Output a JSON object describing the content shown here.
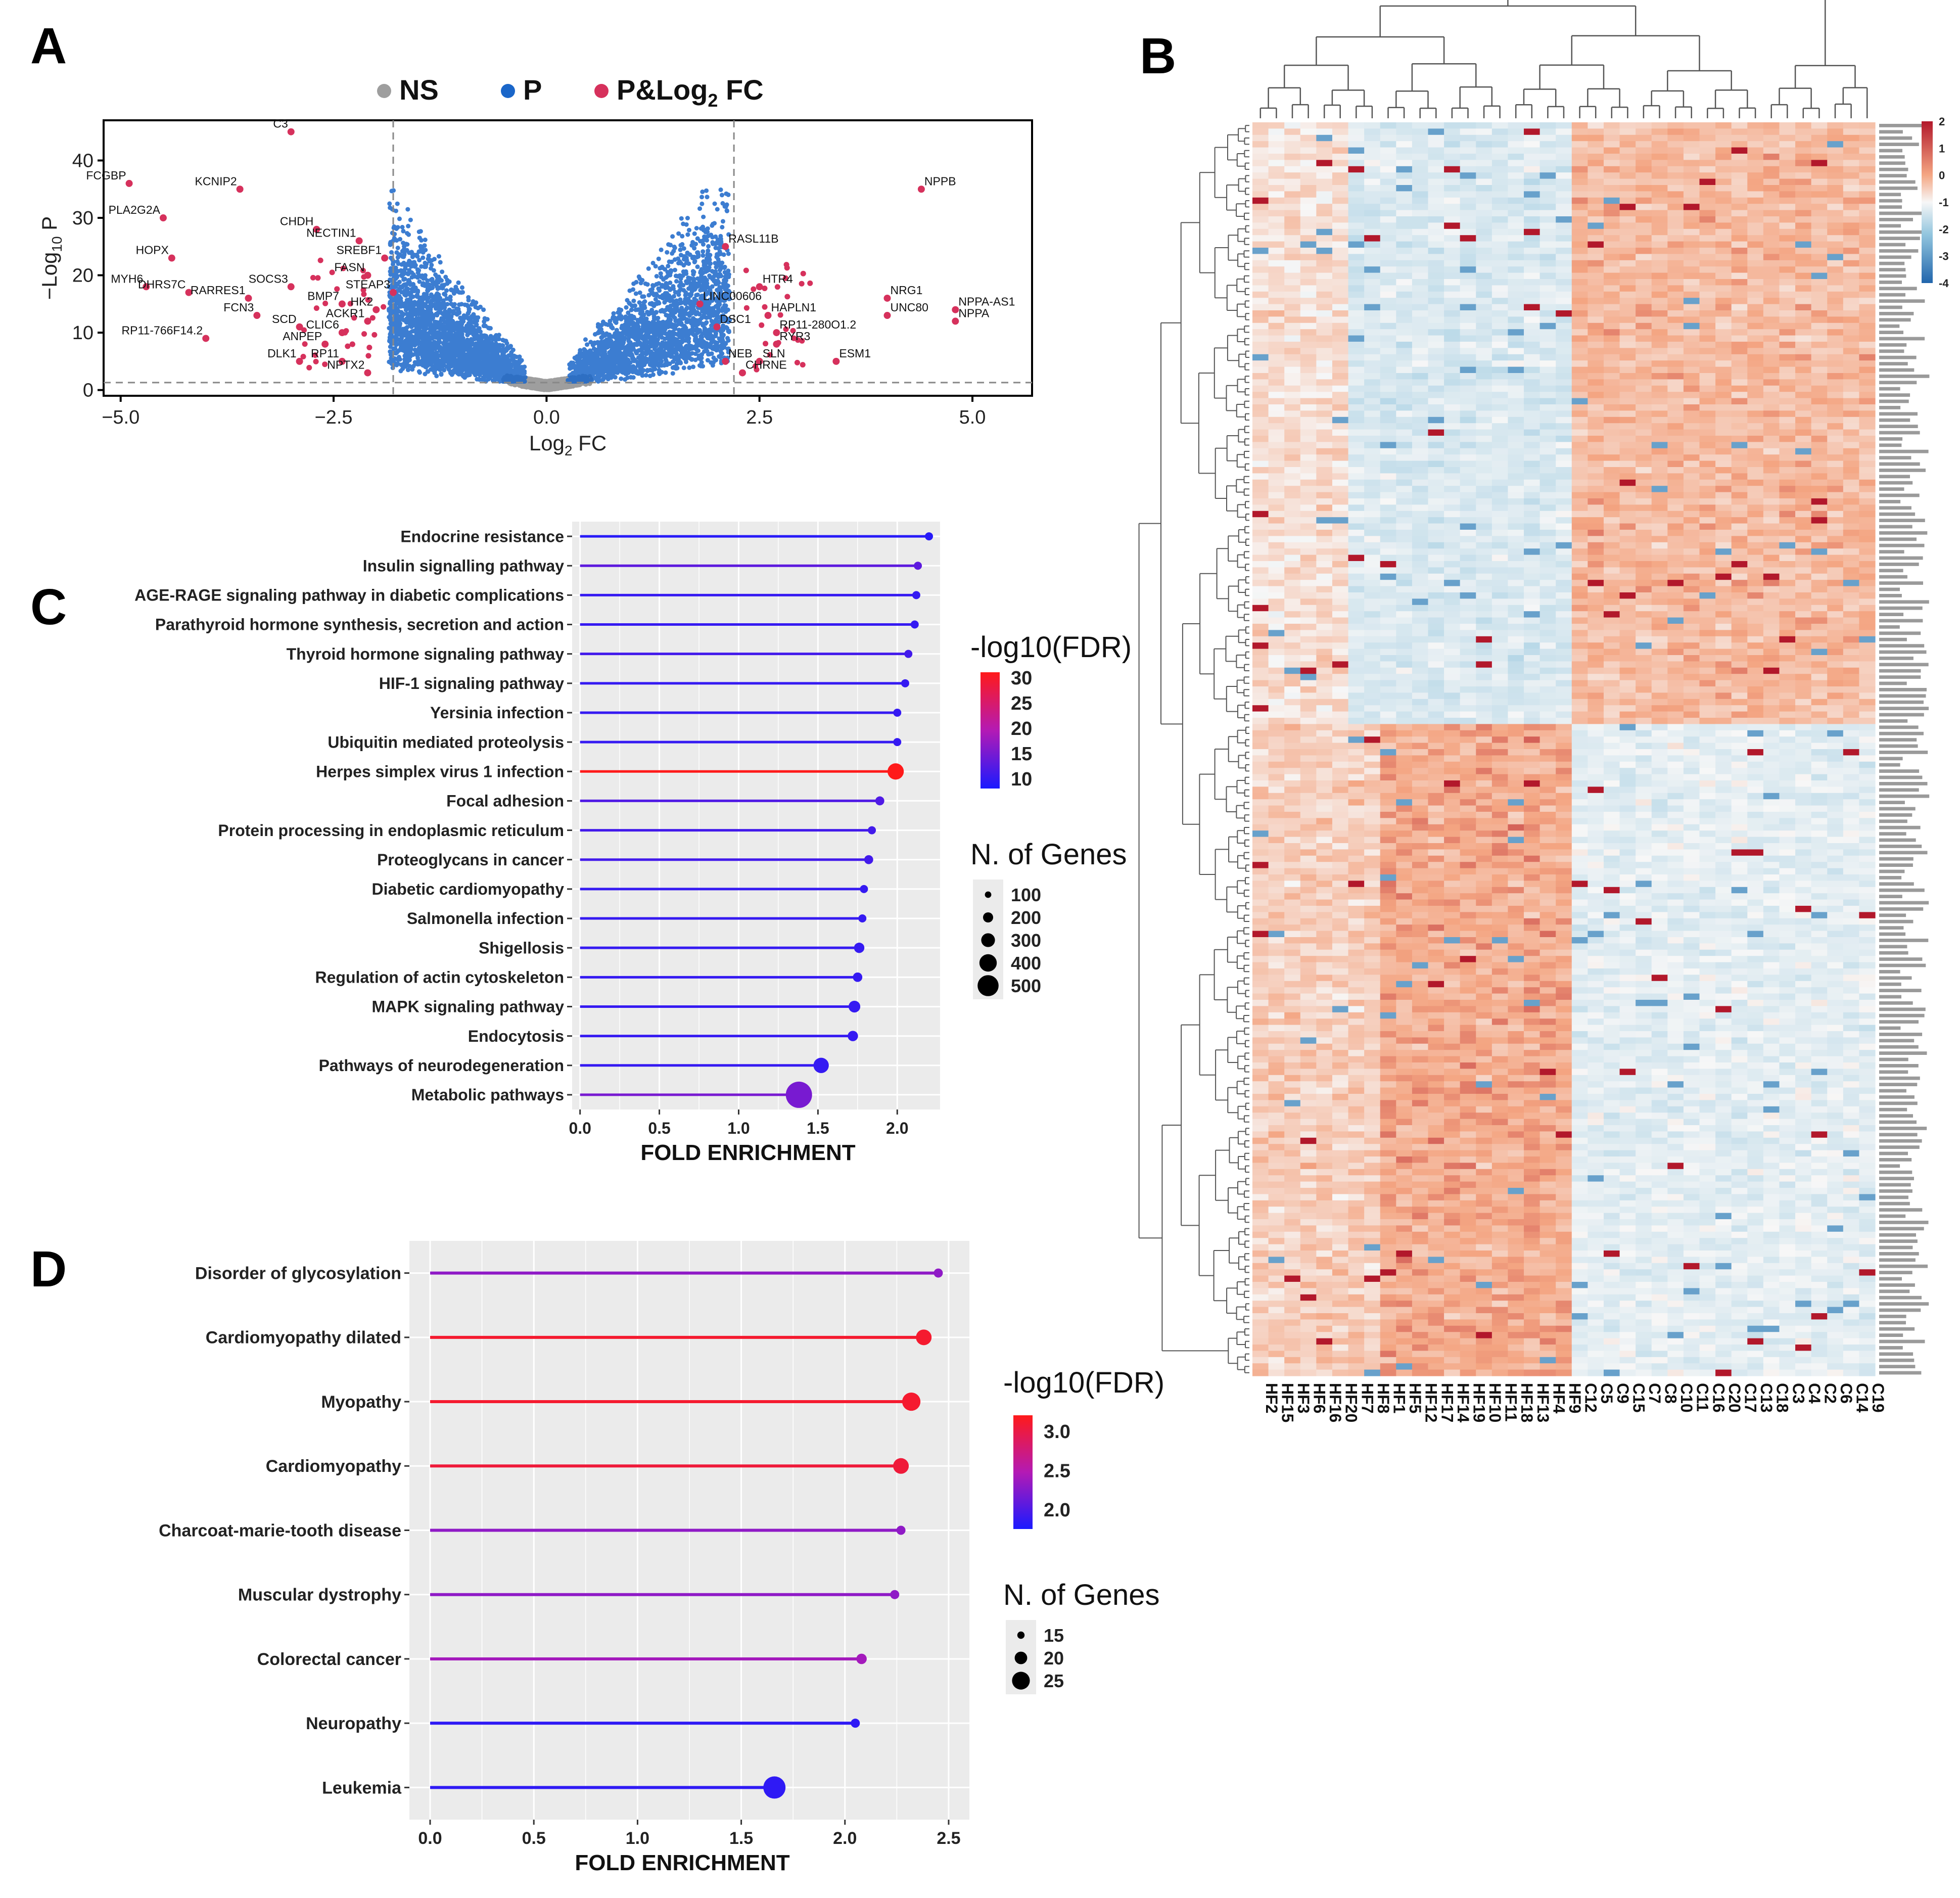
{
  "panel_labels": {
    "A": "A",
    "B": "B",
    "C": "C",
    "D": "D"
  },
  "colors": {
    "ns": "#9e9e9e",
    "p": "#1a66c9",
    "sig": "#d6315c",
    "heat_high": "#b2182b",
    "heat_low": "#2166ac",
    "fdr_high": "#ff1a1a",
    "fdr_low": "#1a1aff",
    "panel_bg": "#ebebeb"
  },
  "chart_data": [
    {
      "id": "A",
      "type": "scatter",
      "title": "",
      "legend": [
        {
          "label": "NS",
          "color": "#9e9e9e"
        },
        {
          "label": "P",
          "color": "#1a66c9"
        },
        {
          "label": "P&Log2 FC",
          "label_base": "P&Log",
          "label_sub": "2",
          "label_suffix": " FC",
          "color": "#d6315c"
        }
      ],
      "legend_position": "top",
      "xlabel": "Log2 FC",
      "xlabel_base": "Log",
      "xlabel_sub": "2",
      "xlabel_suffix": " FC",
      "ylabel": "−Log10 P",
      "ylabel_base": "−Log",
      "ylabel_sub": "10",
      "ylabel_suffix": " P",
      "xlim": [
        -5.2,
        5.7
      ],
      "ylim": [
        -1,
        47
      ],
      "xticks": [
        -5.0,
        -2.5,
        0.0,
        2.5,
        5.0
      ],
      "xtick_labels": [
        "−5.0",
        "−2.5",
        "0.0",
        "2.5",
        "5.0"
      ],
      "yticks": [
        0,
        10,
        20,
        30,
        40
      ],
      "ytick_labels": [
        "0",
        "10",
        "20",
        "30",
        "40"
      ],
      "thresholds": {
        "x_left": -1.8,
        "x_right": 2.2,
        "y": 1.3
      },
      "labeled_points": [
        {
          "label": "C3",
          "x": -3.0,
          "y": 45
        },
        {
          "label": "FCGBP",
          "x": -4.9,
          "y": 36
        },
        {
          "label": "KCNIP2",
          "x": -3.6,
          "y": 35
        },
        {
          "label": "PLA2G2A",
          "x": -4.5,
          "y": 30
        },
        {
          "label": "NPPB",
          "x": 4.4,
          "y": 35
        },
        {
          "label": "CHDH",
          "x": -2.7,
          "y": 28
        },
        {
          "label": "NECTIN1",
          "x": -2.2,
          "y": 26
        },
        {
          "label": "RASL11B",
          "x": 2.1,
          "y": 25
        },
        {
          "label": "HOPX",
          "x": -4.4,
          "y": 23
        },
        {
          "label": "SREBF1",
          "x": -1.9,
          "y": 23
        },
        {
          "label": "FASN",
          "x": -2.1,
          "y": 20
        },
        {
          "label": "HTR4",
          "x": 2.5,
          "y": 18
        },
        {
          "label": "MYH6",
          "x": -4.7,
          "y": 18
        },
        {
          "label": "DHRS7C",
          "x": -4.2,
          "y": 17
        },
        {
          "label": "SOCS3",
          "x": -3.0,
          "y": 18
        },
        {
          "label": "STEAP3",
          "x": -1.8,
          "y": 17
        },
        {
          "label": "RARRES1",
          "x": -3.5,
          "y": 16
        },
        {
          "label": "BMP7",
          "x": -2.4,
          "y": 15
        },
        {
          "label": "FCN3",
          "x": -3.4,
          "y": 13
        },
        {
          "label": "LINC00606",
          "x": 1.8,
          "y": 15
        },
        {
          "label": "HAPLN1",
          "x": 2.6,
          "y": 13
        },
        {
          "label": "NRG1",
          "x": 4.0,
          "y": 16
        },
        {
          "label": "UNC80",
          "x": 4.0,
          "y": 13
        },
        {
          "label": "NPPA-AS1",
          "x": 4.8,
          "y": 14
        },
        {
          "label": "NPPA",
          "x": 4.8,
          "y": 12
        },
        {
          "label": "HK2",
          "x": -2.0,
          "y": 14
        },
        {
          "label": "ACKR1",
          "x": -2.1,
          "y": 12
        },
        {
          "label": "SCD",
          "x": -2.9,
          "y": 11
        },
        {
          "label": "CLIC6",
          "x": -2.4,
          "y": 10
        },
        {
          "label": "RP11-766F14.2",
          "x": -4.0,
          "y": 9
        },
        {
          "label": "ANPEP",
          "x": -2.6,
          "y": 8
        },
        {
          "label": "RP11-280O1.2",
          "x": 2.7,
          "y": 10
        },
        {
          "label": "DSC1",
          "x": 2.0,
          "y": 11
        },
        {
          "label": "RYR3",
          "x": 2.7,
          "y": 8
        },
        {
          "label": "ESM1",
          "x": 3.4,
          "y": 5
        },
        {
          "label": "DLK1",
          "x": -2.9,
          "y": 5
        },
        {
          "label": "RP11",
          "x": -2.4,
          "y": 5
        },
        {
          "label": "NPTX2",
          "x": -2.1,
          "y": 3
        },
        {
          "label": "SLN",
          "x": 2.5,
          "y": 5
        },
        {
          "label": "NEB",
          "x": 2.1,
          "y": 5
        },
        {
          "label": "CHRNE",
          "x": 2.3,
          "y": 3
        }
      ]
    },
    {
      "id": "B",
      "type": "heatmap",
      "title": "",
      "columns": [
        "HF2",
        "HF15",
        "HF3",
        "HF6",
        "HF16",
        "HF20",
        "HF7",
        "HF8",
        "HF1",
        "HF5",
        "HF12",
        "HF17",
        "HF14",
        "HF19",
        "HF10",
        "HF11",
        "HF18",
        "HF13",
        "HF4",
        "HF9",
        "C12",
        "C5",
        "C9",
        "C15",
        "C7",
        "C8",
        "C10",
        "C11",
        "C16",
        "C20",
        "C17",
        "C13",
        "C18",
        "C3",
        "C4",
        "C2",
        "C6",
        "C14",
        "C19"
      ],
      "groups": {
        "HF": 20,
        "C": 19
      },
      "row_count": 200,
      "row_split": 96,
      "colorbar": {
        "ticks": [
          2,
          1,
          0,
          -1,
          -2,
          -3,
          -4
        ],
        "tick_labels": [
          "2",
          "1",
          "0",
          "-1",
          "-2",
          "-3",
          "-4"
        ],
        "range": [
          -4,
          2
        ]
      },
      "row_labels_note": "row gene labels"
    },
    {
      "id": "C",
      "type": "lollipop",
      "title": "",
      "xlabel": "FOLD ENRICHMENT",
      "xlim": [
        -0.05,
        2.27
      ],
      "xticks": [
        0.0,
        0.5,
        1.0,
        1.5,
        2.0
      ],
      "xtick_labels": [
        "0.0",
        "0.5",
        "1.0",
        "1.5",
        "2.0"
      ],
      "color_legend": {
        "title": "-log10(FDR)",
        "ticks": [
          30,
          25,
          20,
          15,
          10
        ],
        "tick_labels": [
          "30",
          "25",
          "20",
          "15",
          "10"
        ],
        "range": [
          8,
          31
        ]
      },
      "size_legend": {
        "title": "N. of Genes",
        "values": [
          100,
          200,
          300,
          400,
          500
        ],
        "value_labels": [
          "100",
          "200",
          "300",
          "400",
          "500"
        ]
      },
      "categories": [
        "Endocrine resistance",
        "Insulin signalling pathway",
        "AGE-RAGE signaling pathway in diabetic complications",
        "Parathyroid hormone synthesis, secretion and action",
        "Thyroid hormone signaling pathway",
        "HIF-1 signaling pathway",
        "Yersinia infection",
        "Ubiquitin mediated proteolysis",
        "Herpes simplex virus 1 infection",
        "Focal adhesion",
        "Protein processing in endoplasmic reticulum",
        "Proteoglycans in cancer",
        "Diabetic cardiomyopathy",
        "Salmonella infection",
        "Shigellosis",
        "Regulation of actin cytoskeleton",
        "MAPK signaling pathway",
        "Endocytosis",
        "Pathways of neurodegeneration",
        "Metabolic pathways"
      ],
      "values": [
        2.2,
        2.13,
        2.12,
        2.11,
        2.07,
        2.05,
        2.0,
        2.0,
        1.99,
        1.89,
        1.84,
        1.82,
        1.79,
        1.78,
        1.76,
        1.75,
        1.73,
        1.72,
        1.52,
        1.38
      ],
      "fdr": [
        9,
        13,
        10,
        10,
        11,
        10,
        10,
        10,
        31,
        12,
        11,
        11,
        10,
        10,
        10,
        10,
        10,
        10,
        10,
        15
      ],
      "genes": [
        60,
        90,
        70,
        70,
        80,
        70,
        80,
        90,
        280,
        120,
        100,
        120,
        90,
        80,
        150,
        130,
        180,
        150,
        260,
        540
      ]
    },
    {
      "id": "D",
      "type": "lollipop",
      "title": "",
      "xlabel": "FOLD ENRICHMENT",
      "xlim": [
        -0.1,
        2.6
      ],
      "xticks": [
        0.0,
        0.5,
        1.0,
        1.5,
        2.0,
        2.5
      ],
      "xtick_labels": [
        "0.0",
        "0.5",
        "1.0",
        "1.5",
        "2.0",
        "2.5"
      ],
      "color_legend": {
        "title": "-log10(FDR)",
        "ticks": [
          3.0,
          2.5,
          2.0
        ],
        "tick_labels": [
          "3.0",
          "2.5",
          "2.0"
        ],
        "range": [
          1.75,
          3.2
        ]
      },
      "size_legend": {
        "title": "N. of Genes",
        "values": [
          15,
          20,
          25
        ],
        "value_labels": [
          "15",
          "20",
          "25"
        ]
      },
      "categories": [
        "Disorder of glycosylation",
        "Cardiomyopathy dilated",
        "Myopathy",
        "Cardiomyopathy",
        "Charcoat-marie-tooth disease",
        "Muscular dystrophy",
        "Colorectal cancer",
        "Neuropathy",
        "Leukemia"
      ],
      "values": [
        2.45,
        2.38,
        2.32,
        2.27,
        2.27,
        2.24,
        2.08,
        2.05,
        1.66
      ],
      "fdr": [
        2.3,
        3.1,
        3.1,
        3.05,
        2.3,
        2.3,
        2.4,
        1.85,
        1.85
      ],
      "genes": [
        11,
        20,
        22,
        20,
        12,
        14,
        16,
        14,
        28
      ]
    }
  ]
}
